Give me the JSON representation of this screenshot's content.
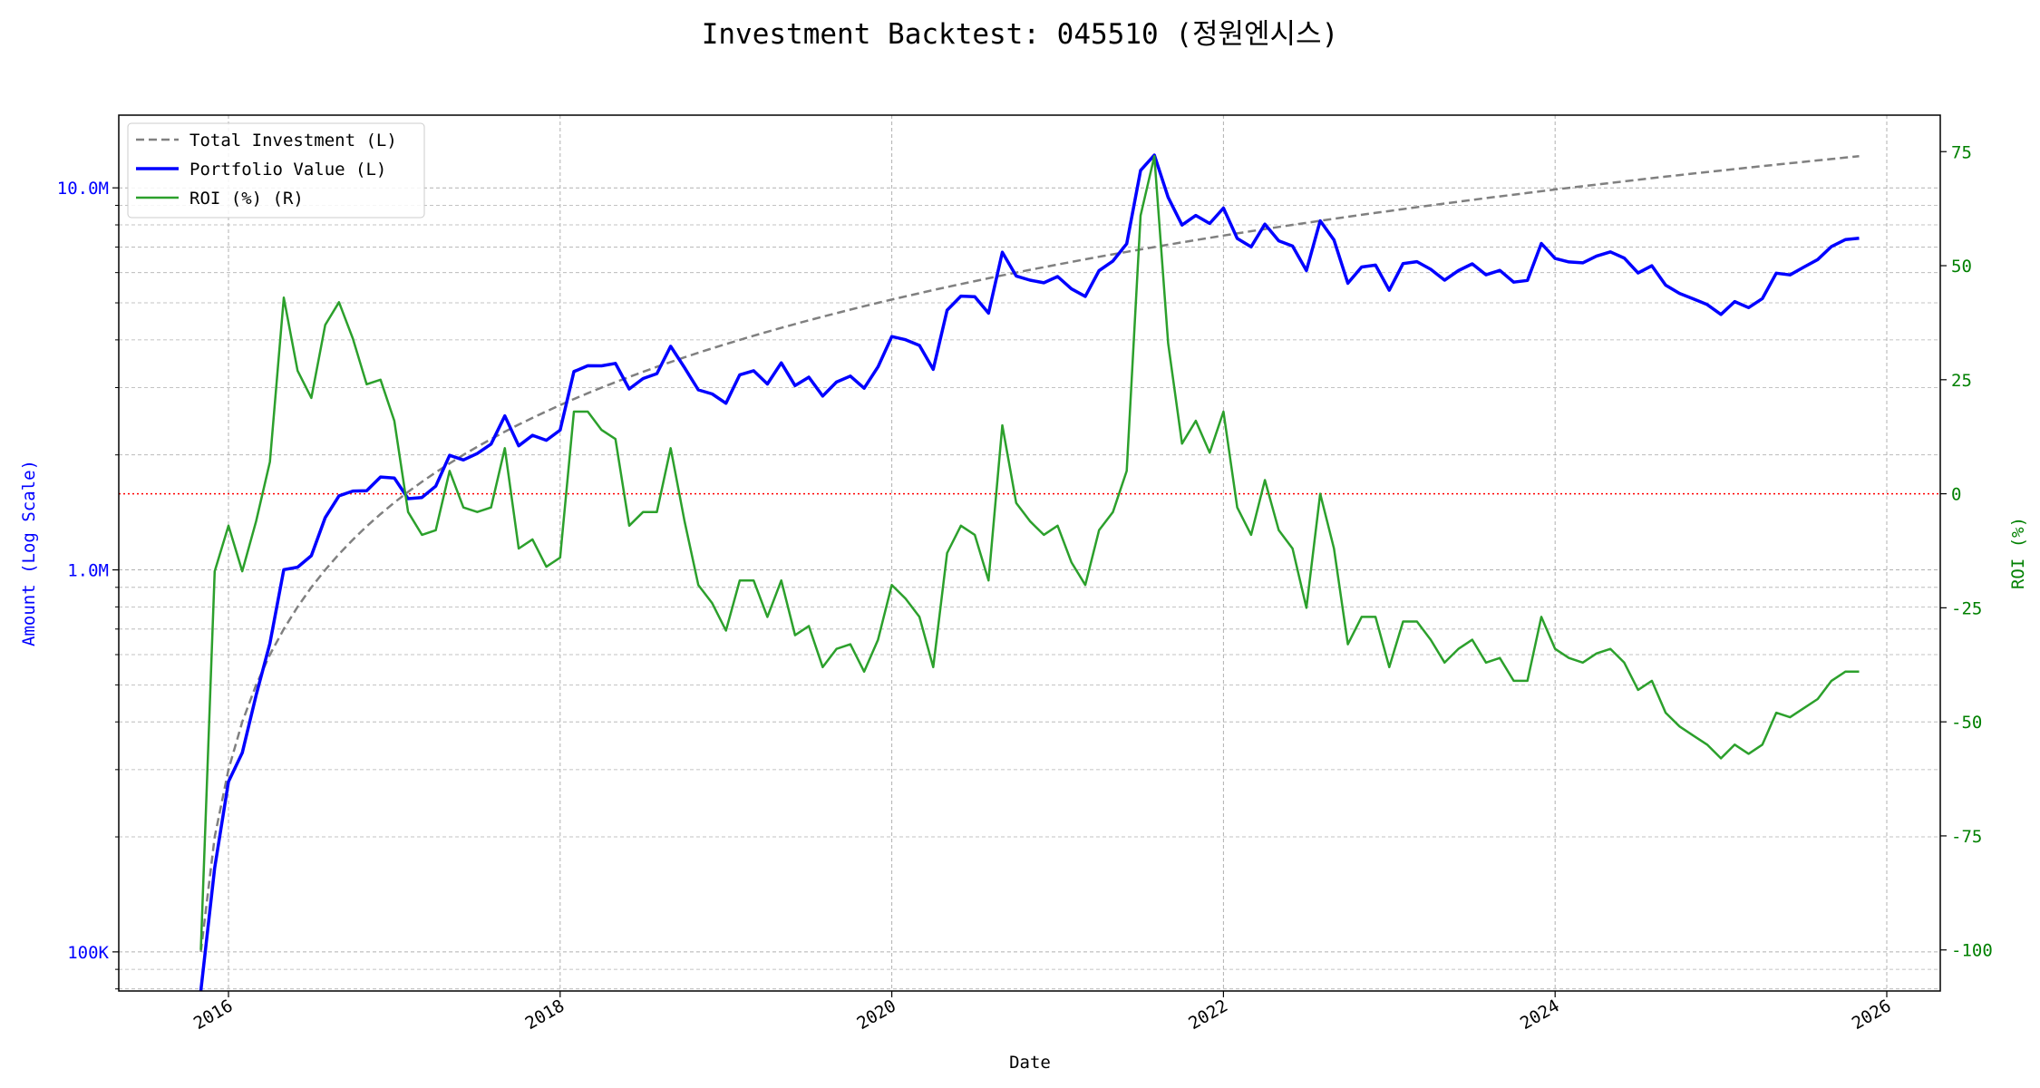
{
  "chart_data": {
    "type": "line",
    "title": "Investment Backtest: 045510 (정원엔시스)",
    "xlabel": "Date",
    "ylabel_left": "Amount (Log Scale)",
    "ylabel_right": "ROI (%)",
    "x_start": "2015-11",
    "x_frequency": "monthly",
    "x_ticks": [
      "2016",
      "2018",
      "2020",
      "2022",
      "2024",
      "2026"
    ],
    "y_left_scale": "log",
    "y_left_ticks": [
      {
        "value": 100000,
        "label": "100K"
      },
      {
        "value": 1000000,
        "label": "1.0M"
      },
      {
        "value": 10000000,
        "label": "10.0M"
      }
    ],
    "y_left_lim": [
      79000,
      15500000
    ],
    "y_right_ticks": [
      -100,
      -75,
      -50,
      -25,
      0,
      25,
      50,
      75
    ],
    "y_right_lim": [
      -109,
      83
    ],
    "grid": true,
    "legend_position": "top-left",
    "reference_line": {
      "axis": "right",
      "value": 0,
      "color": "#ff0000",
      "style": "dotted"
    },
    "colors": {
      "investment": "#808080",
      "portfolio": "#0000ff",
      "roi": "#2ca02c",
      "left_axis": "#0000ff",
      "right_axis": "#008000"
    },
    "series": [
      {
        "name": "Total Investment (L)",
        "axis": "left",
        "style": "dashed",
        "monthly_contribution": 100000
      },
      {
        "name": "Portfolio Value (L)",
        "axis": "left",
        "style": "solid",
        "derived": "investment * (1 + roi/100)"
      },
      {
        "name": "ROI (%) (R)",
        "axis": "right",
        "style": "solid",
        "values": [
          -100,
          -17,
          -7,
          -17,
          -6,
          7,
          43,
          27,
          21,
          37,
          42,
          34,
          24,
          25,
          16,
          -4,
          -9,
          -8,
          5,
          -3,
          -4,
          -3,
          10,
          -12,
          -10,
          -16,
          -14,
          18,
          18,
          14,
          12,
          -7,
          -4,
          -4,
          10,
          -6,
          -20,
          -24,
          -30,
          -19,
          -19,
          -27,
          -19,
          -31,
          -29,
          -38,
          -34,
          -33,
          -39,
          -32,
          -20,
          -23,
          -27,
          -38,
          -13,
          -7,
          -9,
          -19,
          15,
          -2,
          -6,
          -9,
          -7,
          -15,
          -20,
          -8,
          -4,
          5,
          61,
          74,
          33,
          11,
          16,
          9,
          18,
          -3,
          -9,
          3,
          -8,
          -12,
          -25,
          0,
          -12,
          -33,
          -27,
          -27,
          -38,
          -28,
          -28,
          -32,
          -37,
          -34,
          -32,
          -37,
          -36,
          -41,
          -41,
          -27,
          -34,
          -36,
          -37,
          -35,
          -34,
          -37,
          -43,
          -41,
          -48,
          -51,
          -53,
          -55,
          -58,
          -55,
          -57,
          -55,
          -48,
          -49,
          -47,
          -45,
          -41,
          -39,
          -39
        ]
      }
    ]
  }
}
